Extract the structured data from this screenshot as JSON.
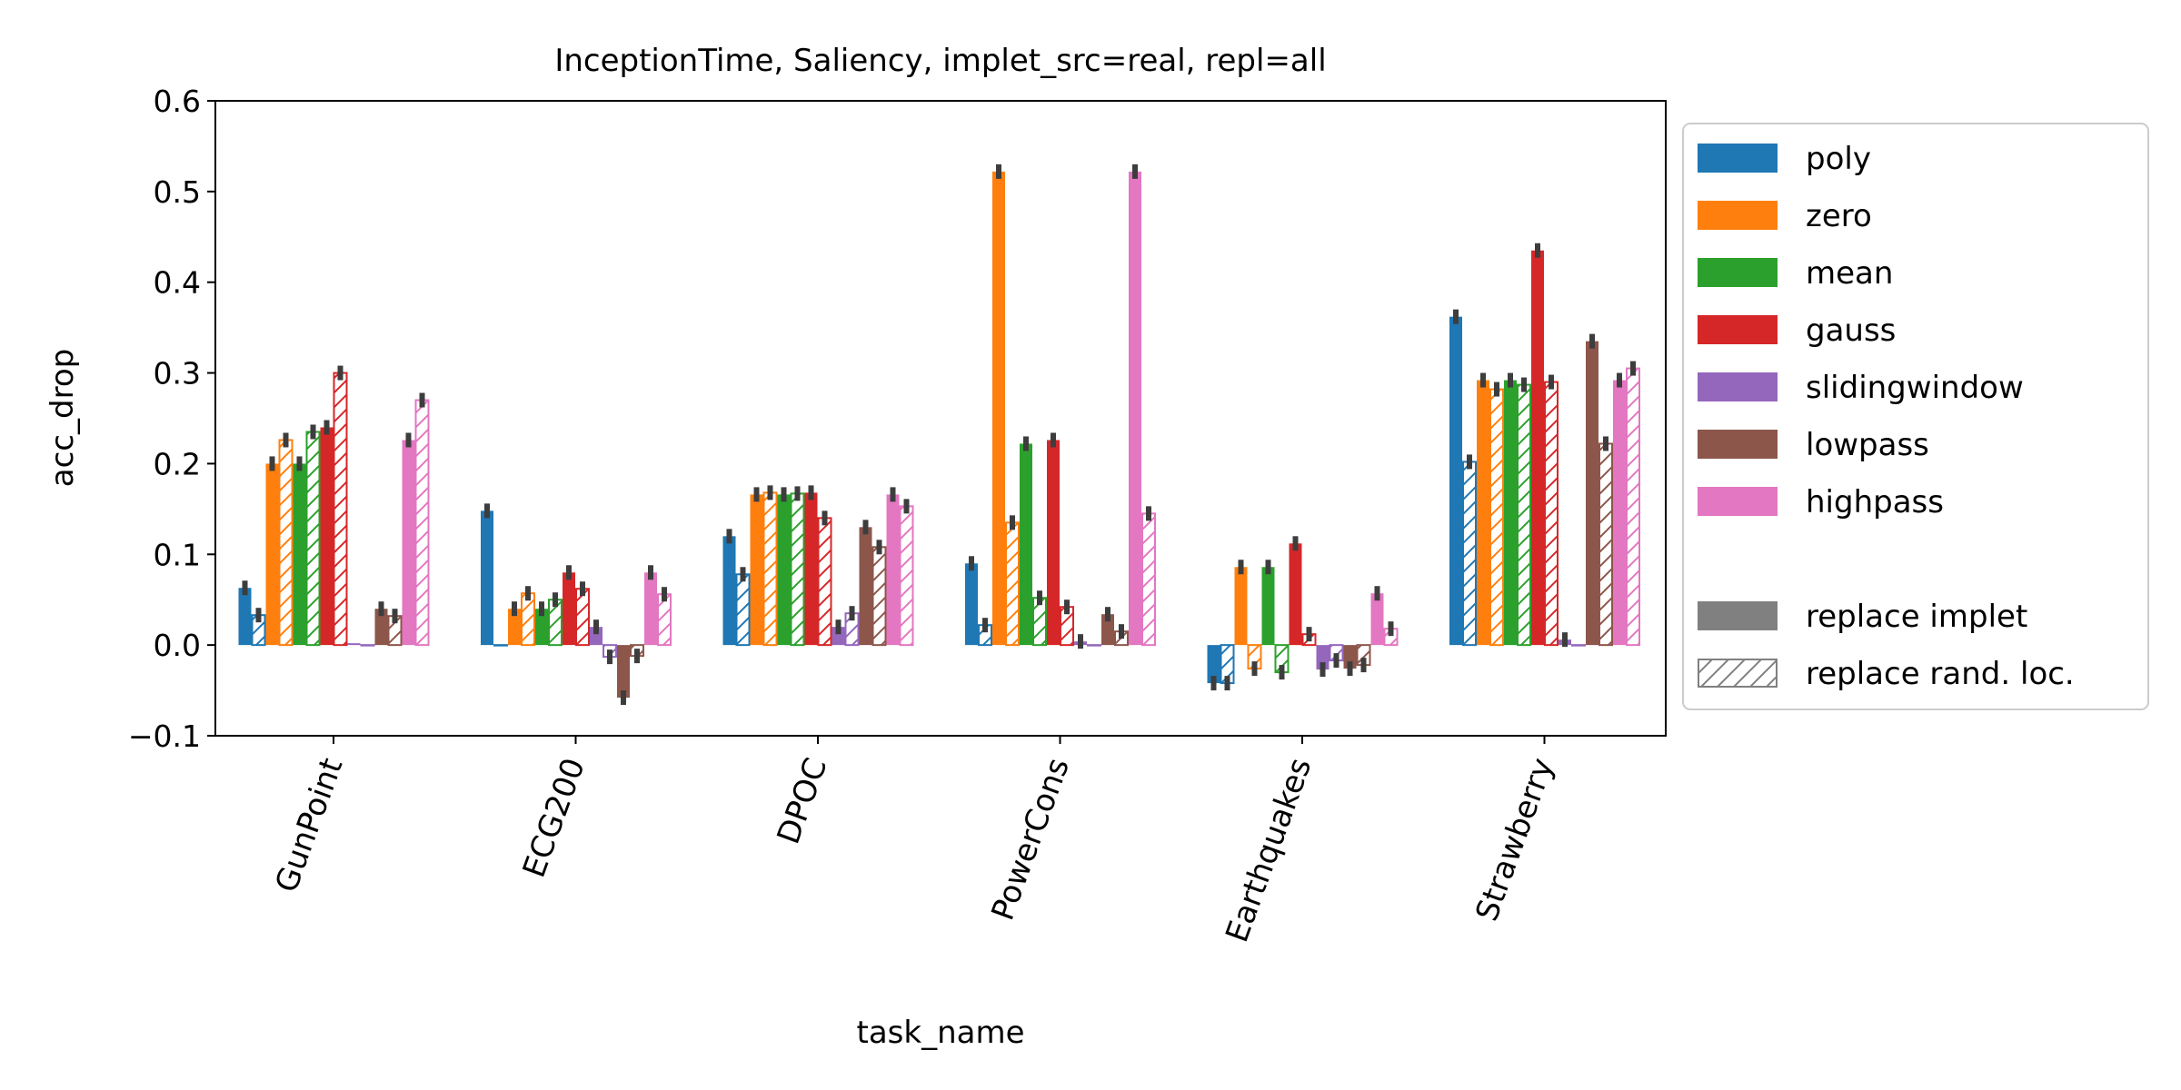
{
  "chart_data": {
    "type": "bar",
    "title": "InceptionTime, Saliency, implet_src=real, repl=all",
    "xlabel": "task_name",
    "ylabel": "acc_drop",
    "ylim": [
      -0.1,
      0.6
    ],
    "yticks": [
      -0.1,
      0.0,
      0.1,
      0.2,
      0.3,
      0.4,
      0.5,
      0.6
    ],
    "ytick_labels": [
      "−0.1",
      "0.0",
      "0.1",
      "0.2",
      "0.3",
      "0.4",
      "0.5",
      "0.6"
    ],
    "categories": [
      "GunPoint",
      "ECG200",
      "DPOC",
      "PowerCons",
      "Earthquakes",
      "Strawberry"
    ],
    "grid": false,
    "legend_position": "outside-right",
    "hatch_legend": [
      "replace implet",
      "replace rand. loc."
    ],
    "series": [
      {
        "name": "poly",
        "color": "#1f77b4",
        "implet": [
          0.063,
          0.148,
          0.12,
          0.09,
          -0.042,
          0.362
        ],
        "random": [
          0.033,
          0.0,
          0.078,
          0.022,
          -0.042,
          0.202
        ]
      },
      {
        "name": "zero",
        "color": "#ff7f0e",
        "implet": [
          0.2,
          0.04,
          0.166,
          0.522,
          0.086,
          0.292
        ],
        "random": [
          0.226,
          0.057,
          0.168,
          0.135,
          -0.026,
          0.282
        ]
      },
      {
        "name": "mean",
        "color": "#2ca02c",
        "implet": [
          0.2,
          0.04,
          0.166,
          0.222,
          0.086,
          0.292
        ],
        "random": [
          0.235,
          0.05,
          0.167,
          0.052,
          -0.03,
          0.287
        ]
      },
      {
        "name": "gauss",
        "color": "#d62728",
        "implet": [
          0.24,
          0.08,
          0.168,
          0.226,
          0.112,
          0.435
        ],
        "random": [
          0.3,
          0.062,
          0.14,
          0.042,
          0.012,
          0.29
        ]
      },
      {
        "name": "slidingwindow",
        "color": "#9467bd",
        "implet": [
          0.002,
          0.02,
          0.02,
          0.004,
          -0.027,
          0.006
        ],
        "random": [
          0.0,
          -0.013,
          0.035,
          0.0,
          -0.017,
          0.0
        ]
      },
      {
        "name": "lowpass",
        "color": "#8c564b",
        "implet": [
          0.04,
          -0.058,
          0.13,
          0.034,
          -0.026,
          0.335
        ],
        "random": [
          0.032,
          -0.012,
          0.108,
          0.015,
          -0.022,
          0.222
        ]
      },
      {
        "name": "highpass",
        "color": "#e377c2",
        "implet": [
          0.226,
          0.08,
          0.166,
          0.522,
          0.057,
          0.292
        ],
        "random": [
          0.27,
          0.056,
          0.153,
          0.145,
          0.018,
          0.305
        ]
      }
    ]
  }
}
